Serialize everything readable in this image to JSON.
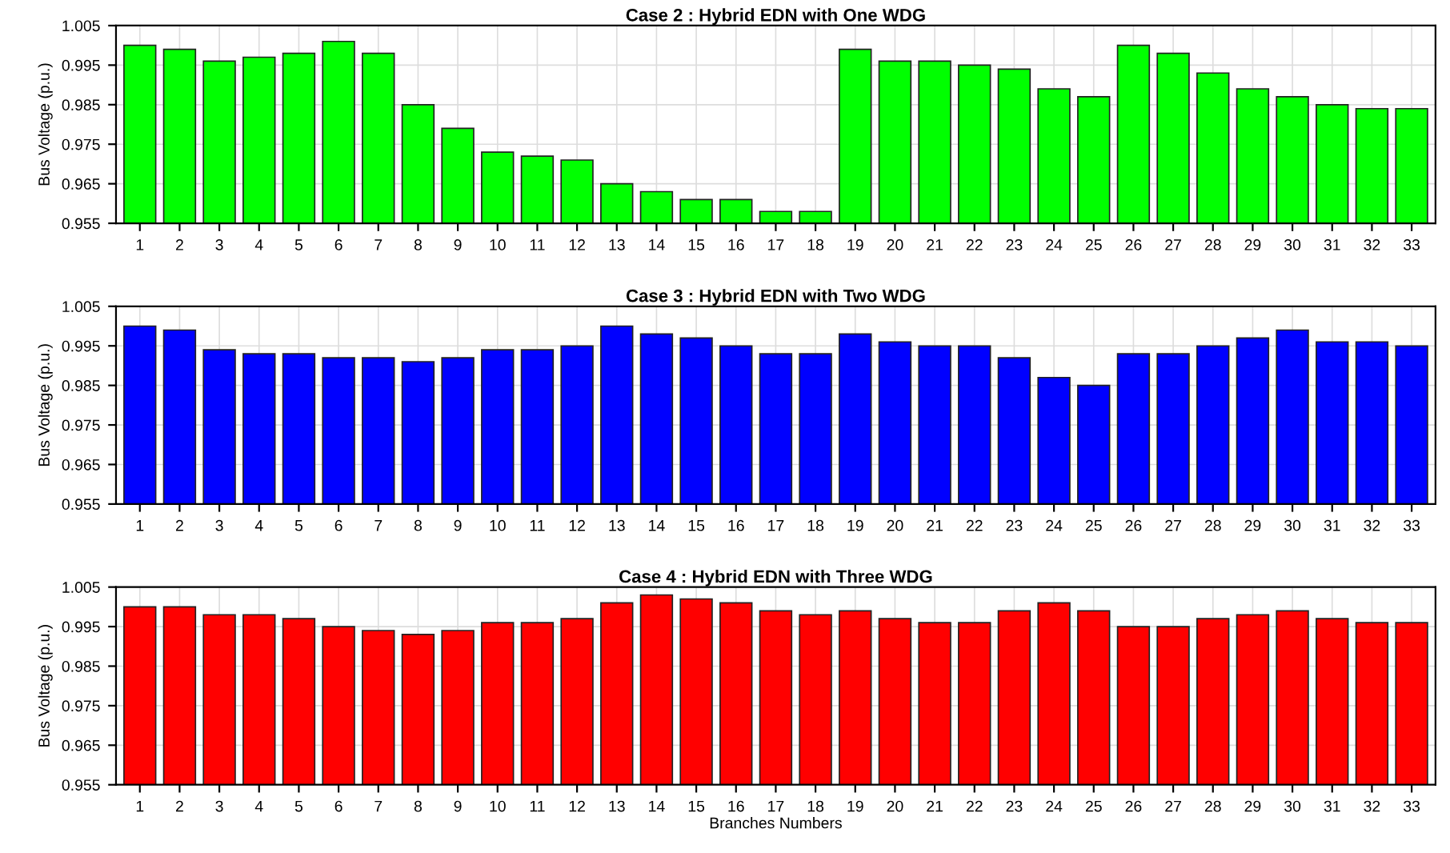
{
  "chart_data": [
    {
      "type": "bar",
      "title": "Case 2 : Hybrid EDN with One WDG",
      "ylabel": "Bus Voltage (p.u.)",
      "categories": [
        "1",
        "2",
        "3",
        "4",
        "5",
        "6",
        "7",
        "8",
        "9",
        "10",
        "11",
        "12",
        "13",
        "14",
        "15",
        "16",
        "17",
        "18",
        "19",
        "20",
        "21",
        "22",
        "23",
        "24",
        "25",
        "26",
        "27",
        "28",
        "29",
        "30",
        "31",
        "32",
        "33"
      ],
      "color": "#00ff00",
      "values": [
        1.0,
        0.999,
        0.996,
        0.997,
        0.998,
        1.001,
        0.998,
        0.985,
        0.979,
        0.973,
        0.972,
        0.971,
        0.965,
        0.963,
        0.961,
        0.961,
        0.958,
        0.958,
        0.999,
        0.996,
        0.996,
        0.995,
        0.994,
        0.989,
        0.987,
        1.0,
        0.998,
        0.993,
        0.989,
        0.987,
        0.985,
        0.984,
        0.984
      ],
      "ylim": [
        0.955,
        1.005
      ],
      "yticks": [
        0.955,
        0.965,
        0.975,
        0.985,
        0.995,
        1.005
      ],
      "grid": true
    },
    {
      "type": "bar",
      "title": "Case 3 : Hybrid EDN with Two WDG",
      "ylabel": "Bus Voltage (p.u.)",
      "categories": [
        "1",
        "2",
        "3",
        "4",
        "5",
        "6",
        "7",
        "8",
        "9",
        "10",
        "11",
        "12",
        "13",
        "14",
        "15",
        "16",
        "17",
        "18",
        "19",
        "20",
        "21",
        "22",
        "23",
        "24",
        "25",
        "26",
        "27",
        "28",
        "29",
        "30",
        "31",
        "32",
        "33"
      ],
      "color": "#0000ff",
      "values": [
        1.0,
        0.999,
        0.994,
        0.993,
        0.993,
        0.992,
        0.992,
        0.991,
        0.992,
        0.994,
        0.994,
        0.995,
        1.0,
        0.998,
        0.997,
        0.995,
        0.993,
        0.993,
        0.998,
        0.996,
        0.995,
        0.995,
        0.992,
        0.987,
        0.985,
        0.993,
        0.993,
        0.995,
        0.997,
        0.999,
        0.996,
        0.996,
        0.995
      ],
      "ylim": [
        0.955,
        1.005
      ],
      "yticks": [
        0.955,
        0.965,
        0.975,
        0.985,
        0.995,
        1.005
      ],
      "grid": true
    },
    {
      "type": "bar",
      "title": "Case 4 : Hybrid EDN with Three WDG",
      "ylabel": "Bus Voltage (p.u.)",
      "xlabel": "Branches Numbers",
      "categories": [
        "1",
        "2",
        "3",
        "4",
        "5",
        "6",
        "7",
        "8",
        "9",
        "10",
        "11",
        "12",
        "13",
        "14",
        "15",
        "16",
        "17",
        "18",
        "19",
        "20",
        "21",
        "22",
        "23",
        "24",
        "25",
        "26",
        "27",
        "28",
        "29",
        "30",
        "31",
        "32",
        "33"
      ],
      "color": "#ff0000",
      "values": [
        1.0,
        1.0,
        0.998,
        0.998,
        0.997,
        0.995,
        0.994,
        0.993,
        0.994,
        0.996,
        0.996,
        0.997,
        1.001,
        1.003,
        1.002,
        1.001,
        0.999,
        0.998,
        0.999,
        0.997,
        0.996,
        0.996,
        0.999,
        1.001,
        0.999,
        0.995,
        0.995,
        0.997,
        0.998,
        0.999,
        0.997,
        0.996,
        0.996
      ],
      "ylim": [
        0.955,
        1.005
      ],
      "yticks": [
        0.955,
        0.965,
        0.975,
        0.985,
        0.995,
        1.005
      ],
      "grid": true
    }
  ]
}
